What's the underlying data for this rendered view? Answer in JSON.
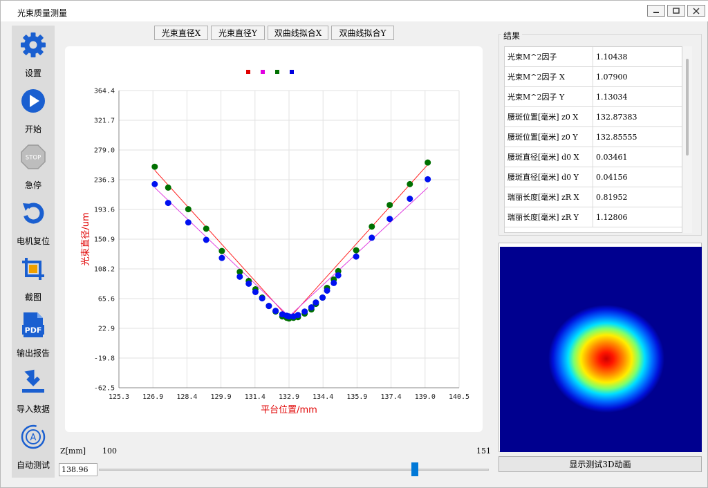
{
  "window": {
    "title": "光束质量测量",
    "controls": [
      "minimize-icon",
      "maximize-icon",
      "close-icon"
    ]
  },
  "sidebar": {
    "items": [
      {
        "label": "设置",
        "icon": "gear-icon"
      },
      {
        "label": "开始",
        "icon": "play-icon"
      },
      {
        "label": "急停",
        "icon": "stop-sign-icon",
        "icon_text": "STOP"
      },
      {
        "label": "电机复位",
        "icon": "reset-icon"
      },
      {
        "label": "截图",
        "icon": "crop-icon"
      },
      {
        "label": "输出报告",
        "icon": "pdf-icon",
        "icon_text": "PDF"
      },
      {
        "label": "导入数据",
        "icon": "download-icon"
      },
      {
        "label": "自动测试",
        "icon": "auto-test-icon",
        "icon_text": "A"
      }
    ]
  },
  "chart_tabs": [
    "光束直径X",
    "光束直径Y",
    "双曲线拟合X",
    "双曲线拟合Y"
  ],
  "chart_data": {
    "type": "scatter",
    "xlabel": "平台位置/mm",
    "ylabel": "光束直径/um",
    "xlim": [
      125.3,
      140.5
    ],
    "ylim": [
      -62.5,
      364.4
    ],
    "xticks": [
      "125.3",
      "126.9",
      "128.4",
      "129.9",
      "131.4",
      "132.9",
      "134.4",
      "135.9",
      "137.4",
      "139.0",
      "140.5"
    ],
    "yticks": [
      "364.4",
      "321.7",
      "279.0",
      "236.3",
      "193.6",
      "150.9",
      "108.2",
      "65.6",
      "22.9",
      "-19.8",
      "-62.5"
    ],
    "grid": true,
    "legend": "top-center",
    "legend_colors": [
      "#e00000",
      "#e000e0",
      "#007000",
      "#0000e0"
    ],
    "series": [
      {
        "color": "#007000",
        "kind": "points",
        "x": [
          126.9,
          127.5,
          128.4,
          129.2,
          129.9,
          130.7,
          131.1,
          131.4,
          131.7,
          132.0,
          132.3,
          132.6,
          132.8,
          132.9,
          133.1,
          133.3,
          133.6,
          133.9,
          134.1,
          134.4,
          134.6,
          134.9,
          135.1,
          135.9,
          136.6,
          137.4,
          138.3,
          139.1
        ],
        "y": [
          255,
          225,
          194,
          166,
          134,
          104,
          91,
          79,
          67,
          55,
          47,
          40,
          38,
          37,
          38,
          39,
          44,
          50,
          58,
          67,
          81,
          93,
          105,
          135,
          169,
          200,
          230,
          261
        ]
      },
      {
        "color": "#0010f0",
        "kind": "points",
        "x": [
          126.9,
          127.5,
          128.4,
          129.2,
          129.9,
          130.7,
          131.1,
          131.4,
          131.7,
          132.0,
          132.3,
          132.6,
          132.8,
          132.9,
          133.1,
          133.3,
          133.6,
          133.9,
          134.1,
          134.4,
          134.6,
          134.9,
          135.1,
          135.9,
          136.6,
          137.4,
          138.3,
          139.1
        ],
        "y": [
          230,
          203,
          175,
          150,
          124,
          97,
          87,
          75,
          66,
          55,
          48,
          43,
          41,
          40,
          40,
          42,
          47,
          53,
          60,
          67,
          77,
          88,
          99,
          126,
          153,
          180,
          209,
          237
        ]
      },
      {
        "color": "#ff2020",
        "kind": "line",
        "x": [
          126.9,
          132.9,
          139.1
        ],
        "y": [
          250,
          37,
          258
        ]
      },
      {
        "color": "#e040e0",
        "kind": "line",
        "x": [
          126.9,
          132.9,
          139.1
        ],
        "y": [
          225,
          40,
          225
        ]
      }
    ]
  },
  "results": {
    "title": "结果",
    "rows": [
      {
        "key": "光束M^2因子",
        "value": "1.10438"
      },
      {
        "key": "光束M^2因子 X",
        "value": "1.07900"
      },
      {
        "key": "光束M^2因子 Y",
        "value": "1.13034"
      },
      {
        "key": "腰斑位置[毫米] z0 X",
        "value": "132.87383"
      },
      {
        "key": "腰斑位置[毫米] z0 Y",
        "value": "132.85555"
      },
      {
        "key": "腰斑直径[毫米] d0 X",
        "value": "0.03461"
      },
      {
        "key": "腰斑直径[毫米] d0 Y",
        "value": "0.04156"
      },
      {
        "key": "瑞丽长度[毫米] zR X",
        "value": "0.81952"
      },
      {
        "key": "瑞丽长度[毫米] zR Y",
        "value": "1.12806"
      }
    ]
  },
  "show_3d_button": "显示测试3D动画",
  "z_axis": {
    "label": "Z[mm]",
    "min": "100",
    "max": "151",
    "value": "138.96",
    "slider_fraction": 0.81
  }
}
